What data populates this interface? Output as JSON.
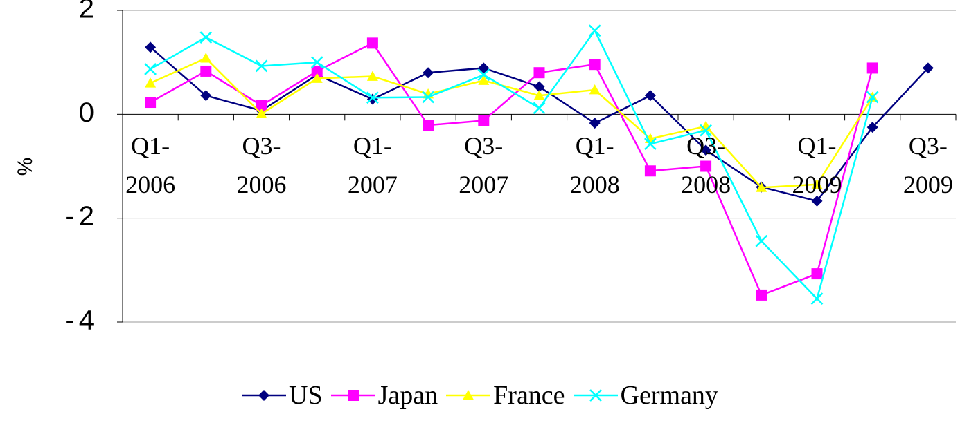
{
  "chart_data": {
    "type": "line",
    "y_label": "%",
    "categories": [
      "Q1-2006",
      null,
      "Q3-2006",
      null,
      "Q1-2007",
      null,
      "Q3-2007",
      null,
      "Q1-2008",
      null,
      "Q3-2008",
      null,
      "Q1-2009",
      null,
      "Q3-2009"
    ],
    "series": [
      {
        "name": "US",
        "color": "#000080",
        "marker": "diamond",
        "values": [
          1.29,
          0.36,
          0.07,
          0.76,
          0.29,
          0.8,
          0.89,
          0.53,
          -0.17,
          0.36,
          -0.69,
          -1.4,
          -1.67,
          -0.25,
          0.89
        ]
      },
      {
        "name": "Japan",
        "color": "#ff00ff",
        "marker": "square",
        "values": [
          0.23,
          0.83,
          0.17,
          0.83,
          1.37,
          -0.21,
          -0.12,
          0.8,
          0.96,
          -1.09,
          -1.0,
          -3.48,
          -3.07,
          0.89,
          null
        ]
      },
      {
        "name": "France",
        "color": "#ffff00",
        "marker": "triangle",
        "values": [
          0.6,
          1.08,
          0.01,
          0.69,
          0.73,
          0.39,
          0.65,
          0.36,
          0.47,
          -0.47,
          -0.23,
          -1.41,
          -1.35,
          0.33,
          null
        ]
      },
      {
        "name": "Germany",
        "color": "#00ffff",
        "marker": "cross",
        "values": [
          0.87,
          1.48,
          0.93,
          1.0,
          0.32,
          0.33,
          0.76,
          0.12,
          1.61,
          -0.57,
          -0.31,
          -2.44,
          -3.55,
          0.33,
          null
        ]
      }
    ],
    "ylim": [
      -4,
      2
    ],
    "yticks": [
      -4,
      -2,
      0,
      2
    ],
    "grid": true,
    "legend": "bottom"
  }
}
